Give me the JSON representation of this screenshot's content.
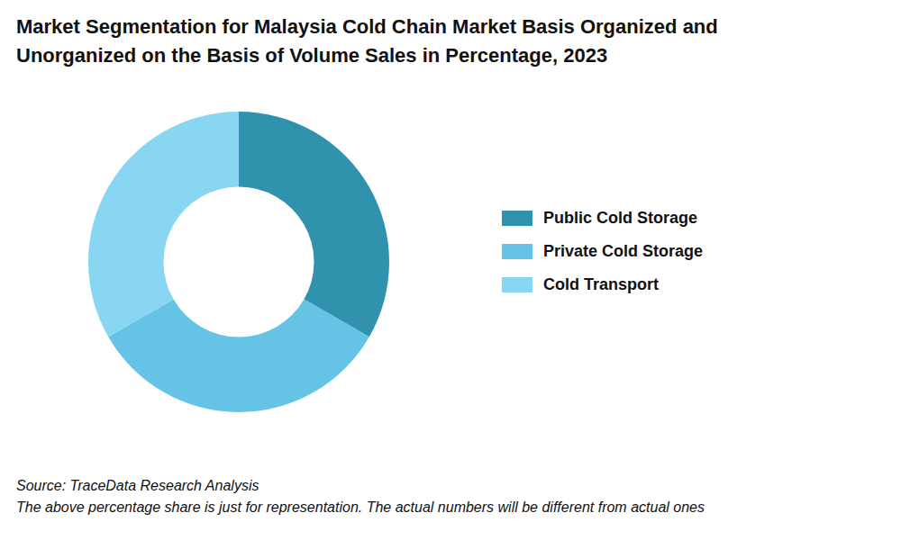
{
  "chart_data": {
    "type": "doughnut",
    "title": "Market Segmentation for Malaysia Cold Chain Market Basis Organized and Unorganized on the Basis of Volume Sales in Percentage, 2023",
    "categories": [
      "Public Cold Storage",
      "Private Cold Storage",
      "Cold Transport"
    ],
    "values": [
      33.3,
      33.4,
      33.3
    ],
    "colors": [
      "#3192ad",
      "#65c3e6",
      "#89d6f2"
    ],
    "legend": "right",
    "source": "Source: TraceData Research Analysis",
    "note": "The above percentage share is just for representation. The actual numbers will be different from actual ones"
  }
}
